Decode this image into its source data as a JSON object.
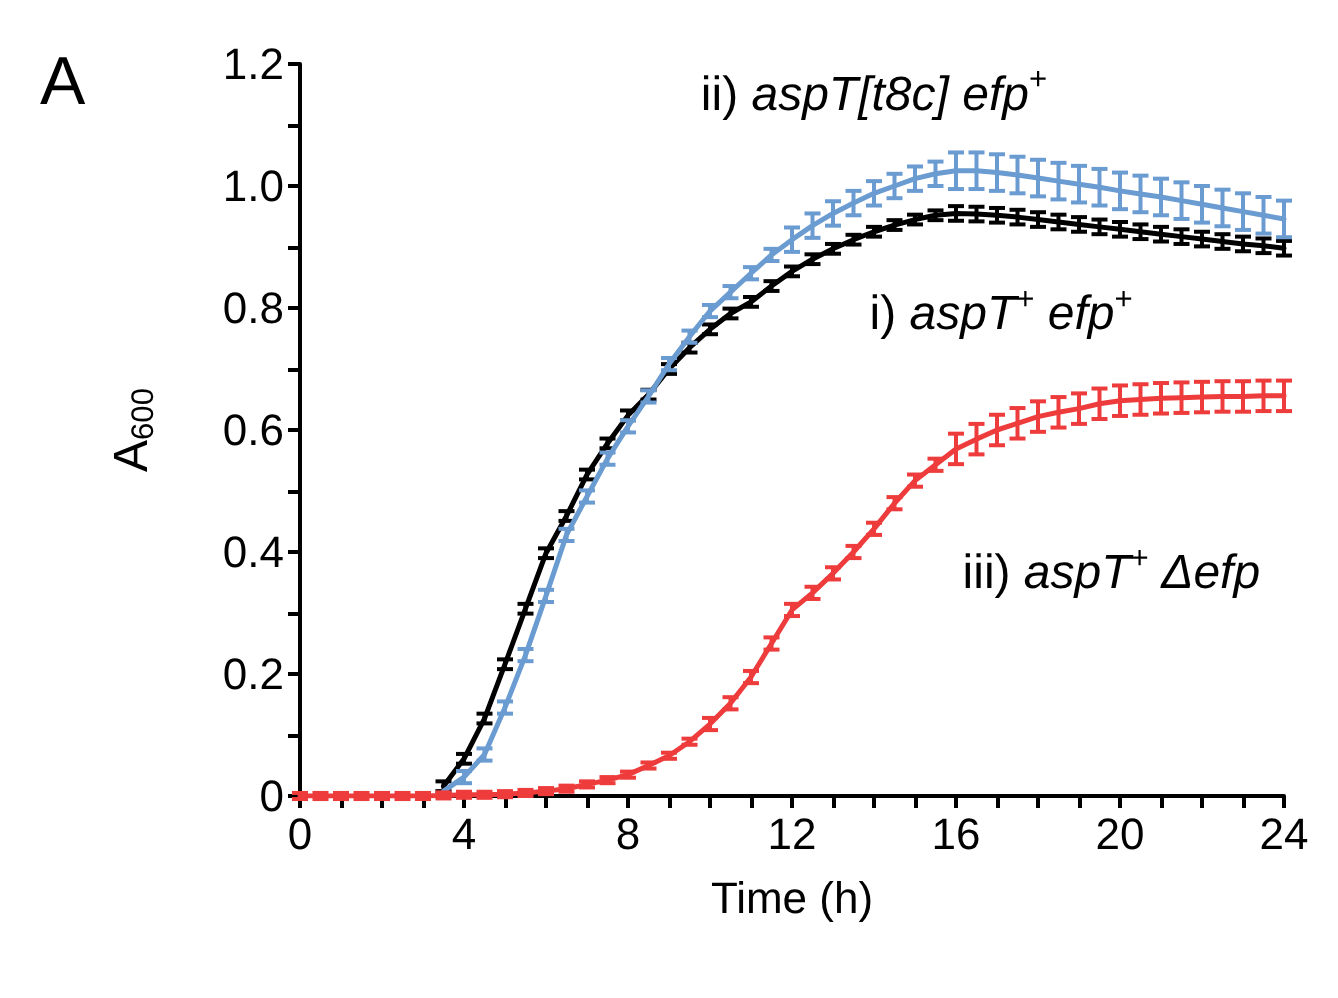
{
  "chart_data": {
    "type": "line",
    "xlabel": "Time (h)",
    "ylabel": "A$_{600}$",
    "annotations": [
      "A"
    ],
    "x": [
      0,
      0.5,
      1,
      1.5,
      2,
      2.5,
      3,
      3.5,
      4,
      4.5,
      5,
      5.5,
      6,
      6.5,
      7,
      7.5,
      8,
      8.5,
      9,
      9.5,
      10,
      10.5,
      11,
      11.5,
      12,
      12.5,
      13,
      13.5,
      14,
      14.5,
      15,
      15.5,
      16,
      16.5,
      17,
      17.5,
      18,
      18.5,
      19,
      19.5,
      20,
      20.5,
      21,
      21.5,
      22,
      22.5,
      23,
      23.5,
      24
    ],
    "series": [
      {
        "name": "i) aspT$^{+}$ efp$^{+}$",
        "color": "#000000",
        "values": [
          null,
          null,
          null,
          null,
          null,
          null,
          null,
          0.016,
          0.061,
          0.127,
          0.216,
          0.307,
          0.398,
          0.459,
          0.527,
          0.578,
          0.624,
          0.658,
          0.7,
          0.735,
          0.765,
          0.791,
          0.81,
          0.836,
          0.86,
          0.88,
          0.897,
          0.912,
          0.925,
          0.936,
          0.945,
          0.952,
          0.955,
          0.954,
          0.952,
          0.949,
          0.945,
          0.941,
          0.937,
          0.933,
          0.929,
          0.925,
          0.921,
          0.917,
          0.913,
          0.909,
          0.905,
          0.902,
          0.898
        ],
        "errors": [
          null,
          null,
          null,
          null,
          null,
          null,
          null,
          0.008,
          0.008,
          0.008,
          0.008,
          0.008,
          0.008,
          0.008,
          0.008,
          0.008,
          0.008,
          0.008,
          0.008,
          0.008,
          0.008,
          0.008,
          0.008,
          0.008,
          0.008,
          0.008,
          0.008,
          0.008,
          0.008,
          0.008,
          0.008,
          0.008,
          0.012,
          0.012,
          0.012,
          0.012,
          0.012,
          0.012,
          0.012,
          0.012,
          0.012,
          0.012,
          0.012,
          0.012,
          0.012,
          0.012,
          0.012,
          0.012,
          0.012
        ]
      },
      {
        "name": "ii) aspT[t8c] efp$^{+}$",
        "color": "#6a9bd1",
        "values": [
          null,
          null,
          null,
          null,
          null,
          null,
          null,
          0.008,
          0.031,
          0.068,
          0.145,
          0.231,
          0.328,
          0.428,
          0.491,
          0.553,
          0.606,
          0.655,
          0.708,
          0.753,
          0.795,
          0.826,
          0.857,
          0.887,
          0.912,
          0.935,
          0.955,
          0.972,
          0.988,
          1.0,
          1.012,
          1.02,
          1.025,
          1.025,
          1.022,
          1.018,
          1.013,
          1.008,
          1.003,
          0.998,
          0.992,
          0.987,
          0.982,
          0.976,
          0.97,
          0.964,
          0.958,
          0.952,
          0.946
        ],
        "errors": [
          null,
          null,
          null,
          null,
          null,
          null,
          null,
          null,
          0.01,
          0.01,
          0.01,
          0.01,
          0.01,
          0.01,
          0.01,
          0.01,
          0.01,
          0.01,
          0.01,
          0.01,
          0.01,
          0.01,
          0.01,
          0.01,
          0.02,
          0.02,
          0.02,
          0.02,
          0.02,
          0.02,
          0.02,
          0.02,
          0.03,
          0.03,
          0.03,
          0.03,
          0.03,
          0.03,
          0.03,
          0.03,
          0.03,
          0.03,
          0.03,
          0.03,
          0.03,
          0.03,
          0.03,
          0.03,
          0.03
        ]
      },
      {
        "name": "iii) aspT$^{+}$ Δefp",
        "color": "#ee3b3b",
        "values": [
          0,
          0,
          0,
          0,
          0,
          0,
          0,
          0.001,
          0.002,
          0.002,
          0.003,
          0.005,
          0.008,
          0.012,
          0.019,
          0.026,
          0.035,
          0.05,
          0.066,
          0.089,
          0.118,
          0.152,
          0.195,
          0.25,
          0.305,
          0.333,
          0.365,
          0.4,
          0.438,
          0.48,
          0.517,
          0.543,
          0.569,
          0.585,
          0.6,
          0.611,
          0.622,
          0.629,
          0.635,
          0.643,
          0.648,
          0.65,
          0.652,
          0.653,
          0.654,
          0.655,
          0.655,
          0.656,
          0.656
        ],
        "errors": [
          0.005,
          0.005,
          0.005,
          0.005,
          0.005,
          0.005,
          0.005,
          0.005,
          0.005,
          0.005,
          0.005,
          0.005,
          0.005,
          0.005,
          0.005,
          0.005,
          0.005,
          0.005,
          0.005,
          0.005,
          0.01,
          0.01,
          0.01,
          0.01,
          0.01,
          0.01,
          0.01,
          0.01,
          0.01,
          0.01,
          0.01,
          0.01,
          0.025,
          0.025,
          0.025,
          0.025,
          0.025,
          0.025,
          0.025,
          0.025,
          0.025,
          0.025,
          0.025,
          0.025,
          0.025,
          0.025,
          0.025,
          0.025,
          0.025
        ]
      }
    ],
    "xlim": [
      0,
      24
    ],
    "xticks": [
      0,
      {
        "value": 1,
        "label": null
      },
      {
        "value": 2,
        "label": null
      },
      {
        "value": 3,
        "label": null
      },
      4,
      {
        "value": 5,
        "label": null
      },
      {
        "value": 6,
        "label": null
      },
      {
        "value": 7,
        "label": null
      },
      8,
      {
        "value": 9,
        "label": null
      },
      {
        "value": 10,
        "label": null
      },
      {
        "value": 11,
        "label": null
      },
      12,
      {
        "value": 13,
        "label": null
      },
      {
        "value": 14,
        "label": null
      },
      {
        "value": 15,
        "label": null
      },
      16,
      {
        "value": 17,
        "label": null
      },
      {
        "value": 18,
        "label": null
      },
      {
        "value": 19,
        "label": null
      },
      20,
      {
        "value": 21,
        "label": null
      },
      {
        "value": 22,
        "label": null
      },
      {
        "value": 23,
        "label": null
      },
      24
    ],
    "ylim": [
      0,
      1.2
    ],
    "yticks": [
      0,
      {
        "value": 0.1,
        "label": null
      },
      0.2,
      {
        "value": 0.3,
        "label": null
      },
      0.4,
      {
        "value": 0.5,
        "label": null
      },
      0.6,
      {
        "value": 0.7,
        "label": null
      },
      0.8,
      {
        "value": 0.9,
        "label": null
      },
      {
        "value": 1,
        "label": "1.0"
      },
      {
        "value": 1.1,
        "label": null
      },
      1.2
    ],
    "grid": false,
    "line_style": "solid"
  }
}
